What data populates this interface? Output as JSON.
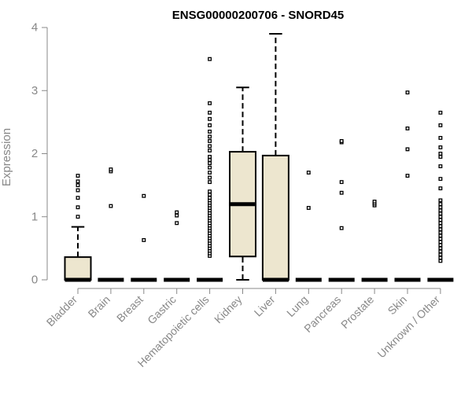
{
  "chart_data": {
    "type": "boxplot",
    "title": "ENSG00000200706 - SNORD45",
    "xlabel": "",
    "ylabel": "Expression",
    "ylim": [
      0,
      4
    ],
    "yticks": [
      "0",
      "1",
      "2",
      "3",
      "4"
    ],
    "categories": [
      "Bladder",
      "Brain",
      "Breast",
      "Gastric",
      "Hematopoietic cells",
      "Kidney",
      "Liver",
      "Lung",
      "Pancreas",
      "Prostate",
      "Skin",
      "Unknown / Other"
    ],
    "boxes": [
      {
        "q1": 0,
        "median": 0,
        "q3": 0.36,
        "whisker_low": 0,
        "whisker_high": 0.84,
        "outliers": [
          1.0,
          1.15,
          1.3,
          1.42,
          1.5,
          1.56,
          1.65
        ]
      },
      {
        "q1": 0,
        "median": 0,
        "q3": 0,
        "whisker_low": 0,
        "whisker_high": 0,
        "outliers": [
          1.17,
          1.72,
          1.75
        ]
      },
      {
        "q1": 0,
        "median": 0,
        "q3": 0,
        "whisker_low": 0,
        "whisker_high": 0,
        "outliers": [
          0.63,
          1.33
        ]
      },
      {
        "q1": 0,
        "median": 0,
        "q3": 0,
        "whisker_low": 0,
        "whisker_high": 0,
        "outliers": [
          0.9,
          1.02,
          1.07
        ]
      },
      {
        "q1": 0,
        "median": 0,
        "q3": 0,
        "whisker_low": 0,
        "whisker_high": 0,
        "outliers": [
          0.38,
          0.42,
          0.46,
          0.5,
          0.54,
          0.58,
          0.62,
          0.66,
          0.7,
          0.74,
          0.78,
          0.82,
          0.86,
          0.9,
          0.94,
          0.98,
          1.02,
          1.06,
          1.1,
          1.14,
          1.18,
          1.22,
          1.26,
          1.3,
          1.35,
          1.4,
          1.55,
          1.62,
          1.7,
          1.78,
          1.85,
          1.9,
          1.95,
          2.05,
          2.12,
          2.2,
          2.27,
          2.35,
          2.45,
          2.55,
          2.65,
          2.8,
          3.5
        ]
      },
      {
        "q1": 0.37,
        "median": 1.2,
        "q3": 2.03,
        "whisker_low": 0,
        "whisker_high": 3.05,
        "outliers": []
      },
      {
        "q1": 0,
        "median": 0,
        "q3": 1.97,
        "whisker_low": 0,
        "whisker_high": 3.9,
        "outliers": []
      },
      {
        "q1": 0,
        "median": 0,
        "q3": 0,
        "whisker_low": 0,
        "whisker_high": 0,
        "outliers": [
          1.14,
          1.7
        ]
      },
      {
        "q1": 0,
        "median": 0,
        "q3": 0,
        "whisker_low": 0,
        "whisker_high": 0,
        "outliers": [
          0.82,
          1.38,
          1.55,
          2.18,
          2.2
        ]
      },
      {
        "q1": 0,
        "median": 0,
        "q3": 0,
        "whisker_low": 0,
        "whisker_high": 0,
        "outliers": [
          1.18,
          1.21,
          1.24
        ]
      },
      {
        "q1": 0,
        "median": 0,
        "q3": 0,
        "whisker_low": 0,
        "whisker_high": 0,
        "outliers": [
          1.65,
          2.07,
          2.4,
          2.97
        ]
      },
      {
        "q1": 0,
        "median": 0,
        "q3": 0,
        "whisker_low": 0,
        "whisker_high": 0,
        "outliers": [
          0.3,
          0.35,
          0.4,
          0.45,
          0.5,
          0.55,
          0.6,
          0.65,
          0.7,
          0.75,
          0.8,
          0.85,
          0.9,
          0.95,
          1.0,
          1.05,
          1.1,
          1.15,
          1.2,
          1.26,
          1.45,
          1.6,
          1.8,
          1.95,
          2.0,
          2.1,
          2.25,
          2.45,
          2.65
        ]
      }
    ]
  }
}
